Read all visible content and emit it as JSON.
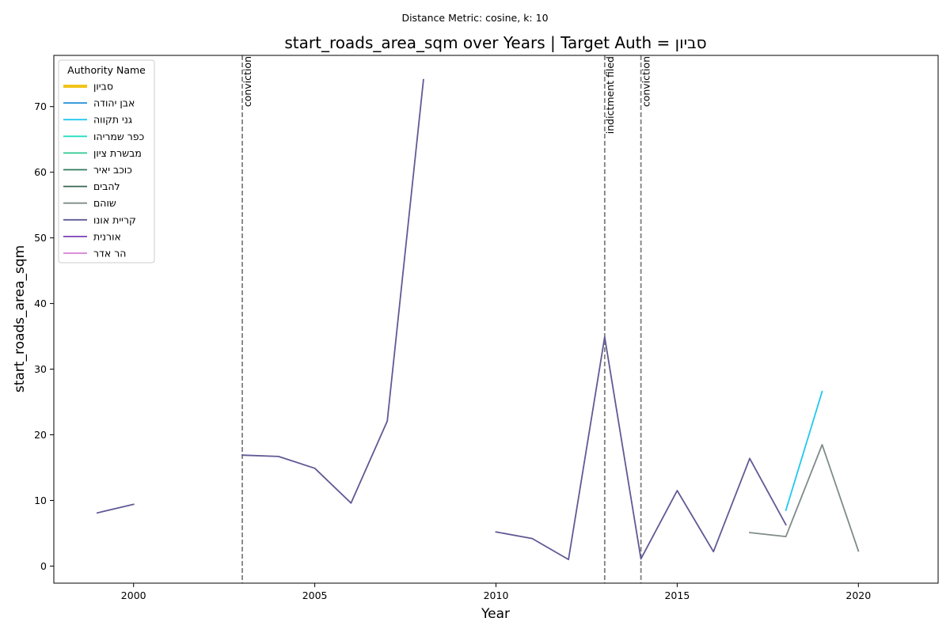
{
  "chart_data": {
    "type": "line",
    "suptitle": "Distance Metric: cosine, k: 10",
    "title": "start_roads_area_sqm over Years | Target Auth = סביון",
    "xlabel": "Year",
    "ylabel": "start_roads_area_sqm",
    "xlim": [
      1997.8,
      2022.2
    ],
    "ylim": [
      -2.6,
      77.8
    ],
    "xticks": [
      2000,
      2005,
      2010,
      2015,
      2020
    ],
    "yticks": [
      0,
      10,
      20,
      30,
      40,
      50,
      60,
      70
    ],
    "grid": false,
    "legend": {
      "title": "Authority Name",
      "position": "top-left"
    },
    "series": [
      {
        "name": "סביון",
        "color": "#f0c419",
        "target": true,
        "points": []
      },
      {
        "name": "אבן יהודה",
        "color": "#1f8fd6",
        "points": []
      },
      {
        "name": "גני תקווה",
        "color": "#22c8ee",
        "points": [
          [
            2018,
            8.5
          ],
          [
            2019,
            26.6
          ]
        ]
      },
      {
        "name": "כפר שמריהו",
        "color": "#22dec0",
        "points": []
      },
      {
        "name": "מבשרת ציון",
        "color": "#2ac98f",
        "points": []
      },
      {
        "name": "כוכב יאיר",
        "color": "#2f7a5c",
        "points": []
      },
      {
        "name": "להבים",
        "color": "#356650",
        "points": []
      },
      {
        "name": "שוהם",
        "color": "#7f8b8a",
        "points": [
          [
            2017,
            5.1
          ],
          [
            2018,
            4.5
          ],
          [
            2019,
            18.5
          ],
          [
            2020,
            2.3
          ]
        ]
      },
      {
        "name": "קריית אונו",
        "color": "#605a94",
        "points": [
          [
            1999,
            8.1
          ],
          [
            2000,
            9.4
          ],
          null,
          [
            2003,
            16.9
          ],
          [
            2004,
            16.7
          ],
          [
            2005,
            14.9
          ],
          [
            2006,
            9.6
          ],
          [
            2007,
            22.1
          ],
          [
            2008,
            74.1
          ],
          null,
          [
            2010,
            5.2
          ],
          [
            2011,
            4.2
          ],
          [
            2012,
            1.0
          ],
          [
            2013,
            34.9
          ],
          [
            2014,
            1.1
          ],
          [
            2015,
            11.5
          ],
          [
            2016,
            2.2
          ],
          [
            2017,
            16.4
          ],
          [
            2018,
            6.3
          ]
        ]
      },
      {
        "name": "אורנית",
        "color": "#7a40b8",
        "points": []
      },
      {
        "name": "הר אדר",
        "color": "#d77fd4",
        "points": []
      }
    ],
    "events": [
      {
        "x": 2003,
        "label": "conviction"
      },
      {
        "x": 2013,
        "label": "indictment filed"
      },
      {
        "x": 2014,
        "label": "conviction"
      }
    ]
  }
}
